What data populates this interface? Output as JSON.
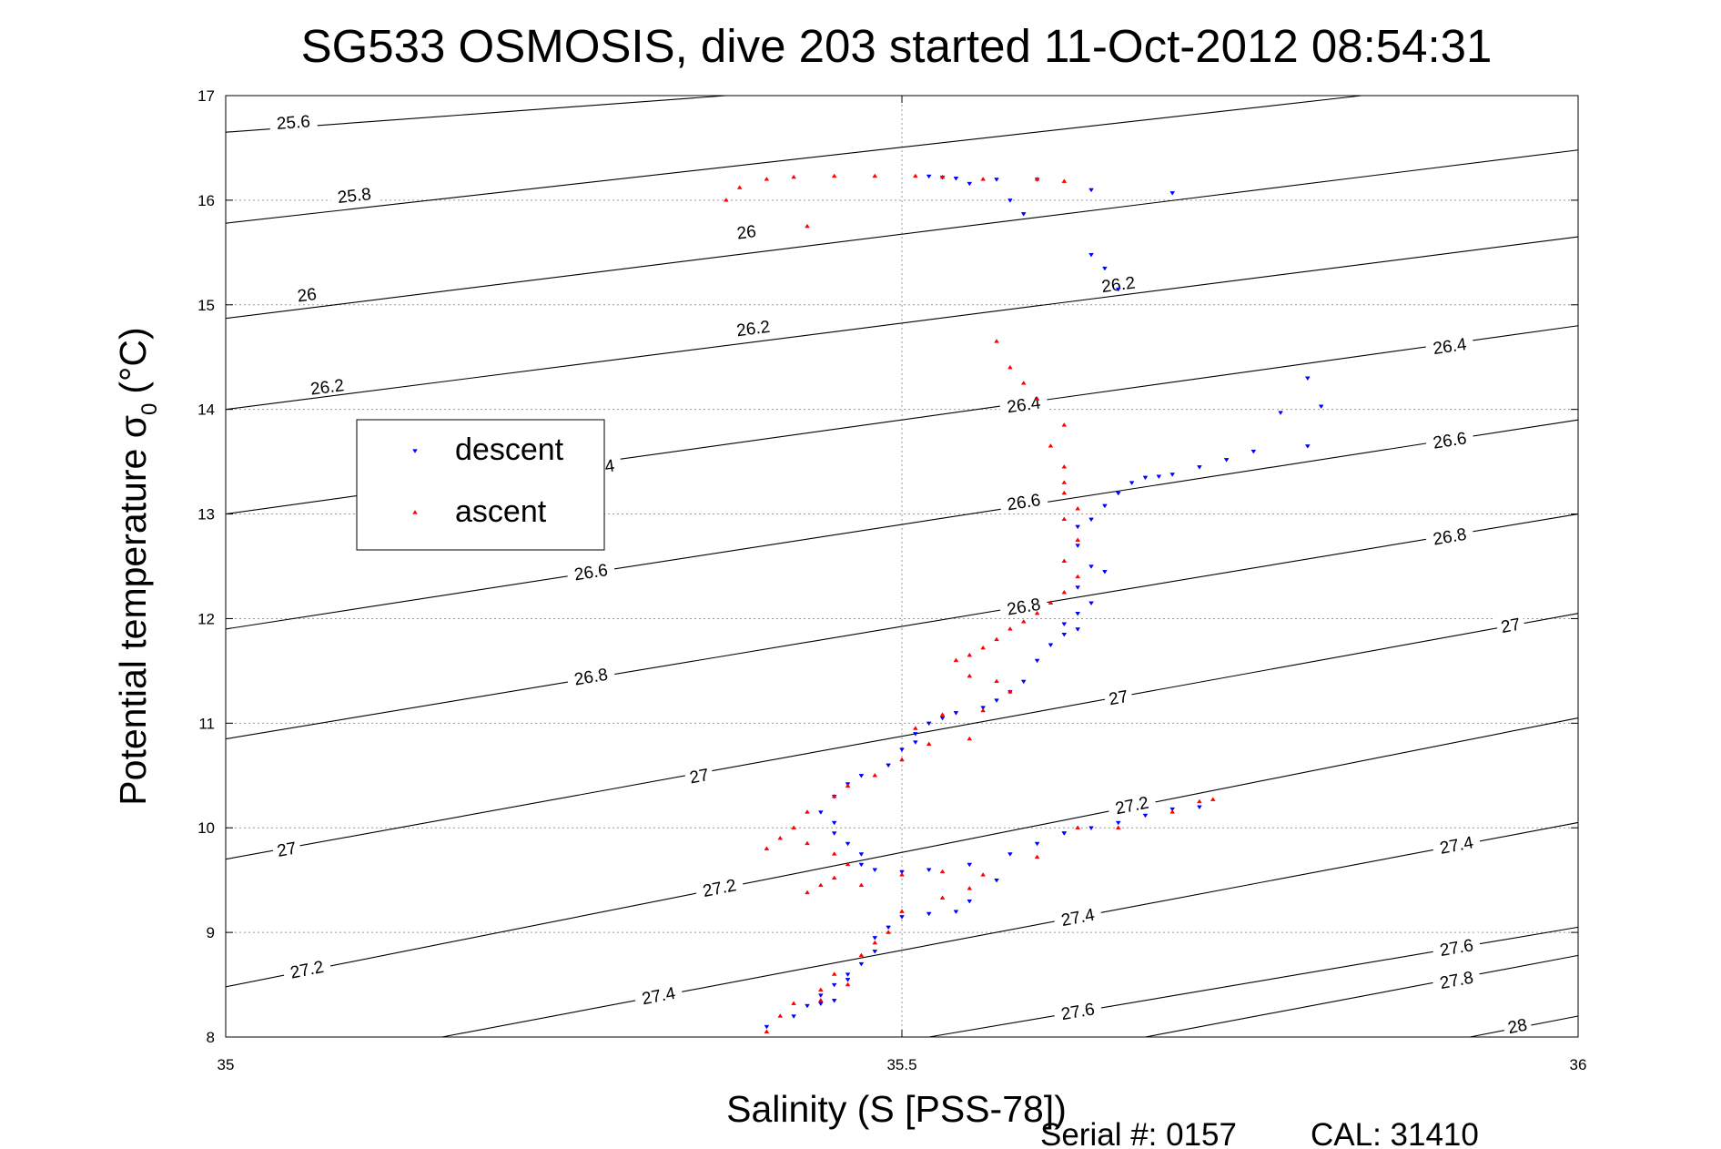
{
  "chart_data": {
    "type": "scatter",
    "title": "SG533 OSMOSIS, dive 203 started 11-Oct-2012 08:54:31",
    "xlabel": "Salinity (S [PSS-78])",
    "ylabel_main": "Potential temperature σ",
    "ylabel_sub": "0",
    "ylabel_unit": "(°C)",
    "xlim": [
      35,
      36
    ],
    "ylim": [
      8,
      17
    ],
    "xticks": [
      35,
      35.5,
      36
    ],
    "xtick_labels": [
      "35",
      "35.5",
      "36"
    ],
    "yticks": [
      8,
      9,
      10,
      11,
      12,
      13,
      14,
      15,
      16,
      17
    ],
    "ytick_labels": [
      "8",
      "9",
      "10",
      "11",
      "12",
      "13",
      "14",
      "15",
      "16",
      "17"
    ],
    "grid": true,
    "legend_position": "upper-left",
    "series": [
      {
        "name": "descent",
        "color": "#0000ff",
        "marker": "triangle-down",
        "points": [
          [
            35.52,
            16.23
          ],
          [
            35.53,
            16.22
          ],
          [
            35.54,
            16.21
          ],
          [
            35.55,
            16.16
          ],
          [
            35.57,
            16.2
          ],
          [
            35.6,
            16.2
          ],
          [
            35.64,
            16.1
          ],
          [
            35.7,
            16.07
          ],
          [
            35.58,
            16.0
          ],
          [
            35.59,
            15.87
          ],
          [
            35.64,
            15.48
          ],
          [
            35.65,
            15.35
          ],
          [
            35.66,
            15.15
          ],
          [
            35.8,
            14.3
          ],
          [
            35.81,
            14.03
          ],
          [
            35.78,
            13.97
          ],
          [
            35.8,
            13.65
          ],
          [
            35.76,
            13.6
          ],
          [
            35.74,
            13.52
          ],
          [
            35.72,
            13.45
          ],
          [
            35.7,
            13.38
          ],
          [
            35.69,
            13.36
          ],
          [
            35.68,
            13.35
          ],
          [
            35.67,
            13.3
          ],
          [
            35.66,
            13.2
          ],
          [
            35.65,
            13.08
          ],
          [
            35.64,
            12.95
          ],
          [
            35.63,
            12.88
          ],
          [
            35.63,
            12.7
          ],
          [
            35.64,
            12.5
          ],
          [
            35.65,
            12.45
          ],
          [
            35.63,
            12.3
          ],
          [
            35.64,
            12.15
          ],
          [
            35.63,
            12.05
          ],
          [
            35.62,
            11.95
          ],
          [
            35.63,
            11.9
          ],
          [
            35.62,
            11.85
          ],
          [
            35.61,
            11.75
          ],
          [
            35.6,
            11.6
          ],
          [
            35.59,
            11.4
          ],
          [
            35.58,
            11.3
          ],
          [
            35.57,
            11.22
          ],
          [
            35.56,
            11.15
          ],
          [
            35.54,
            11.1
          ],
          [
            35.53,
            11.05
          ],
          [
            35.52,
            11.0
          ],
          [
            35.51,
            10.9
          ],
          [
            35.51,
            10.82
          ],
          [
            35.5,
            10.75
          ],
          [
            35.49,
            10.6
          ],
          [
            35.47,
            10.5
          ],
          [
            35.46,
            10.42
          ],
          [
            35.45,
            10.3
          ],
          [
            35.44,
            10.15
          ],
          [
            35.45,
            10.05
          ],
          [
            35.45,
            9.95
          ],
          [
            35.46,
            9.85
          ],
          [
            35.47,
            9.75
          ],
          [
            35.47,
            9.65
          ],
          [
            35.48,
            9.6
          ],
          [
            35.5,
            9.58
          ],
          [
            35.52,
            9.6
          ],
          [
            35.55,
            9.65
          ],
          [
            35.58,
            9.75
          ],
          [
            35.62,
            9.95
          ],
          [
            35.64,
            10.0
          ],
          [
            35.68,
            10.12
          ],
          [
            35.72,
            10.2
          ],
          [
            35.7,
            10.18
          ],
          [
            35.66,
            10.05
          ],
          [
            35.62,
            9.95
          ],
          [
            35.6,
            9.85
          ],
          [
            35.57,
            9.5
          ],
          [
            35.55,
            9.3
          ],
          [
            35.54,
            9.2
          ],
          [
            35.52,
            9.18
          ],
          [
            35.5,
            9.15
          ],
          [
            35.49,
            9.05
          ],
          [
            35.48,
            8.95
          ],
          [
            35.48,
            8.82
          ],
          [
            35.47,
            8.7
          ],
          [
            35.46,
            8.6
          ],
          [
            35.45,
            8.5
          ],
          [
            35.44,
            8.4
          ],
          [
            35.43,
            8.3
          ],
          [
            35.42,
            8.2
          ],
          [
            35.4,
            8.1
          ],
          [
            35.45,
            8.35
          ],
          [
            35.44,
            8.32
          ],
          [
            35.46,
            8.55
          ]
        ]
      },
      {
        "name": "ascent",
        "color": "#ff0000",
        "marker": "triangle-up",
        "points": [
          [
            35.37,
            16.0
          ],
          [
            35.38,
            16.12
          ],
          [
            35.4,
            16.2
          ],
          [
            35.42,
            16.22
          ],
          [
            35.45,
            16.23
          ],
          [
            35.48,
            16.23
          ],
          [
            35.51,
            16.23
          ],
          [
            35.53,
            16.22
          ],
          [
            35.56,
            16.2
          ],
          [
            35.6,
            16.2
          ],
          [
            35.62,
            16.18
          ],
          [
            35.43,
            15.75
          ],
          [
            35.57,
            14.65
          ],
          [
            35.58,
            14.4
          ],
          [
            35.59,
            14.25
          ],
          [
            35.6,
            14.1
          ],
          [
            35.62,
            13.85
          ],
          [
            35.61,
            13.65
          ],
          [
            35.62,
            13.45
          ],
          [
            35.62,
            13.3
          ],
          [
            35.62,
            13.2
          ],
          [
            35.63,
            13.05
          ],
          [
            35.62,
            12.95
          ],
          [
            35.63,
            12.75
          ],
          [
            35.62,
            12.55
          ],
          [
            35.63,
            12.4
          ],
          [
            35.62,
            12.25
          ],
          [
            35.61,
            12.15
          ],
          [
            35.6,
            12.05
          ],
          [
            35.59,
            11.97
          ],
          [
            35.58,
            11.9
          ],
          [
            35.57,
            11.8
          ],
          [
            35.56,
            11.72
          ],
          [
            35.55,
            11.65
          ],
          [
            35.54,
            11.6
          ],
          [
            35.55,
            11.45
          ],
          [
            35.57,
            11.4
          ],
          [
            35.58,
            11.3
          ],
          [
            35.56,
            11.12
          ],
          [
            35.53,
            11.08
          ],
          [
            35.51,
            10.95
          ],
          [
            35.52,
            10.8
          ],
          [
            35.55,
            10.85
          ],
          [
            35.5,
            10.65
          ],
          [
            35.48,
            10.5
          ],
          [
            35.46,
            10.4
          ],
          [
            35.45,
            10.3
          ],
          [
            35.43,
            10.15
          ],
          [
            35.42,
            10.0
          ],
          [
            35.41,
            9.9
          ],
          [
            35.4,
            9.8
          ],
          [
            35.43,
            9.85
          ],
          [
            35.45,
            9.75
          ],
          [
            35.46,
            9.65
          ],
          [
            35.45,
            9.52
          ],
          [
            35.44,
            9.45
          ],
          [
            35.43,
            9.38
          ],
          [
            35.47,
            9.45
          ],
          [
            35.5,
            9.55
          ],
          [
            35.53,
            9.58
          ],
          [
            35.56,
            9.55
          ],
          [
            35.6,
            9.72
          ],
          [
            35.63,
            10.0
          ],
          [
            35.66,
            10.0
          ],
          [
            35.7,
            10.15
          ],
          [
            35.72,
            10.25
          ],
          [
            35.73,
            10.27
          ],
          [
            35.55,
            9.42
          ],
          [
            35.53,
            9.33
          ],
          [
            35.5,
            9.2
          ],
          [
            35.49,
            9.0
          ],
          [
            35.48,
            8.9
          ],
          [
            35.47,
            8.78
          ],
          [
            35.45,
            8.6
          ],
          [
            35.44,
            8.45
          ],
          [
            35.42,
            8.32
          ],
          [
            35.41,
            8.2
          ],
          [
            35.4,
            8.05
          ],
          [
            35.44,
            8.35
          ],
          [
            35.46,
            8.5
          ]
        ]
      }
    ],
    "contours": [
      {
        "label": "25.6",
        "x0": 35.0,
        "y0": 16.65,
        "x1": 35.37,
        "y1": 17.0,
        "lx": 35.05,
        "ly": 16.75
      },
      {
        "label": "25.8",
        "x0": 35.0,
        "y0": 15.78,
        "x1": 35.84,
        "y1": 17.0,
        "lx": 35.095,
        "ly": 16.05
      },
      {
        "label": "26",
        "x0": 35.0,
        "y0": 14.87,
        "x1": 36.0,
        "y1": 16.48,
        "lx": 35.06,
        "ly": 15.1
      },
      {
        "label": "26",
        "x0": 35.0,
        "y0": 14.87,
        "x1": 36.0,
        "y1": 16.48,
        "lx": 35.385,
        "ly": 15.7
      },
      {
        "label": "26.2",
        "x0": 35.0,
        "y0": 14.0,
        "x1": 36.0,
        "y1": 15.65,
        "lx": 35.075,
        "ly": 14.22
      },
      {
        "label": "26.2",
        "x0": 35.0,
        "y0": 14.0,
        "x1": 36.0,
        "y1": 15.65,
        "lx": 35.39,
        "ly": 14.78
      },
      {
        "label": "26.2",
        "x0": 35.0,
        "y0": 14.0,
        "x1": 36.0,
        "y1": 15.65,
        "lx": 35.66,
        "ly": 15.2
      },
      {
        "label": "26.4",
        "x0": 35.0,
        "y0": 13.0,
        "x1": 36.0,
        "y1": 14.8,
        "lx": 35.275,
        "ly": 13.45
      },
      {
        "label": "26.4",
        "x0": 35.0,
        "y0": 13.0,
        "x1": 36.0,
        "y1": 14.8,
        "lx": 35.59,
        "ly": 14.05
      },
      {
        "label": "26.4",
        "x0": 35.0,
        "y0": 13.0,
        "x1": 36.0,
        "y1": 14.8,
        "lx": 35.905,
        "ly": 14.61
      },
      {
        "label": "26.6",
        "x0": 35.0,
        "y0": 11.9,
        "x1": 36.0,
        "y1": 13.9,
        "lx": 35.27,
        "ly": 12.45
      },
      {
        "label": "26.6",
        "x0": 35.0,
        "y0": 11.9,
        "x1": 36.0,
        "y1": 13.9,
        "lx": 35.59,
        "ly": 13.12
      },
      {
        "label": "26.6",
        "x0": 35.0,
        "y0": 11.9,
        "x1": 36.0,
        "y1": 13.9,
        "lx": 35.905,
        "ly": 13.71
      },
      {
        "label": "26.8",
        "x0": 35.0,
        "y0": 10.85,
        "x1": 36.0,
        "y1": 13.0,
        "lx": 35.27,
        "ly": 11.45
      },
      {
        "label": "26.8",
        "x0": 35.0,
        "y0": 10.85,
        "x1": 36.0,
        "y1": 13.0,
        "lx": 35.59,
        "ly": 12.12
      },
      {
        "label": "26.8",
        "x0": 35.0,
        "y0": 10.85,
        "x1": 36.0,
        "y1": 13.0,
        "lx": 35.905,
        "ly": 12.79
      },
      {
        "label": "27",
        "x0": 35.0,
        "y0": 9.7,
        "x1": 36.0,
        "y1": 12.05,
        "lx": 35.045,
        "ly": 9.8
      },
      {
        "label": "27",
        "x0": 35.0,
        "y0": 9.7,
        "x1": 36.0,
        "y1": 12.05,
        "lx": 35.35,
        "ly": 10.5
      },
      {
        "label": "27",
        "x0": 35.0,
        "y0": 9.7,
        "x1": 36.0,
        "y1": 12.05,
        "lx": 35.66,
        "ly": 11.25
      },
      {
        "label": "27",
        "x0": 35.0,
        "y0": 9.7,
        "x1": 36.0,
        "y1": 12.05,
        "lx": 35.95,
        "ly": 11.94
      },
      {
        "label": "27.2",
        "x0": 35.0,
        "y0": 8.48,
        "x1": 36.0,
        "y1": 11.05,
        "lx": 35.06,
        "ly": 8.65
      },
      {
        "label": "27.2",
        "x0": 35.0,
        "y0": 8.48,
        "x1": 36.0,
        "y1": 11.05,
        "lx": 35.365,
        "ly": 9.43
      },
      {
        "label": "27.2",
        "x0": 35.0,
        "y0": 8.48,
        "x1": 36.0,
        "y1": 11.05,
        "lx": 35.67,
        "ly": 10.22
      },
      {
        "label": "27.4",
        "x0": 35.16,
        "y0": 8.0,
        "x1": 36.0,
        "y1": 10.05,
        "lx": 35.32,
        "ly": 8.4
      },
      {
        "label": "27.4",
        "x0": 35.16,
        "y0": 8.0,
        "x1": 36.0,
        "y1": 10.05,
        "lx": 35.63,
        "ly": 9.15
      },
      {
        "label": "27.4",
        "x0": 35.16,
        "y0": 8.0,
        "x1": 36.0,
        "y1": 10.05,
        "lx": 35.91,
        "ly": 9.84
      },
      {
        "label": "27.6",
        "x0": 35.52,
        "y0": 8.0,
        "x1": 36.0,
        "y1": 9.05,
        "lx": 35.63,
        "ly": 8.25
      },
      {
        "label": "27.6",
        "x0": 35.52,
        "y0": 8.0,
        "x1": 36.0,
        "y1": 9.05,
        "lx": 35.91,
        "ly": 8.86
      },
      {
        "label": "27.8",
        "x0": 35.68,
        "y0": 8.0,
        "x1": 36.0,
        "y1": 8.78,
        "lx": 35.91,
        "ly": 8.55
      },
      {
        "label": "28",
        "x0": 35.92,
        "y0": 8.0,
        "x1": 36.0,
        "y1": 8.2,
        "lx": 35.955,
        "ly": 8.11
      }
    ]
  },
  "footer": {
    "serial": "Serial #: 0157",
    "cal": "CAL: 31410"
  }
}
